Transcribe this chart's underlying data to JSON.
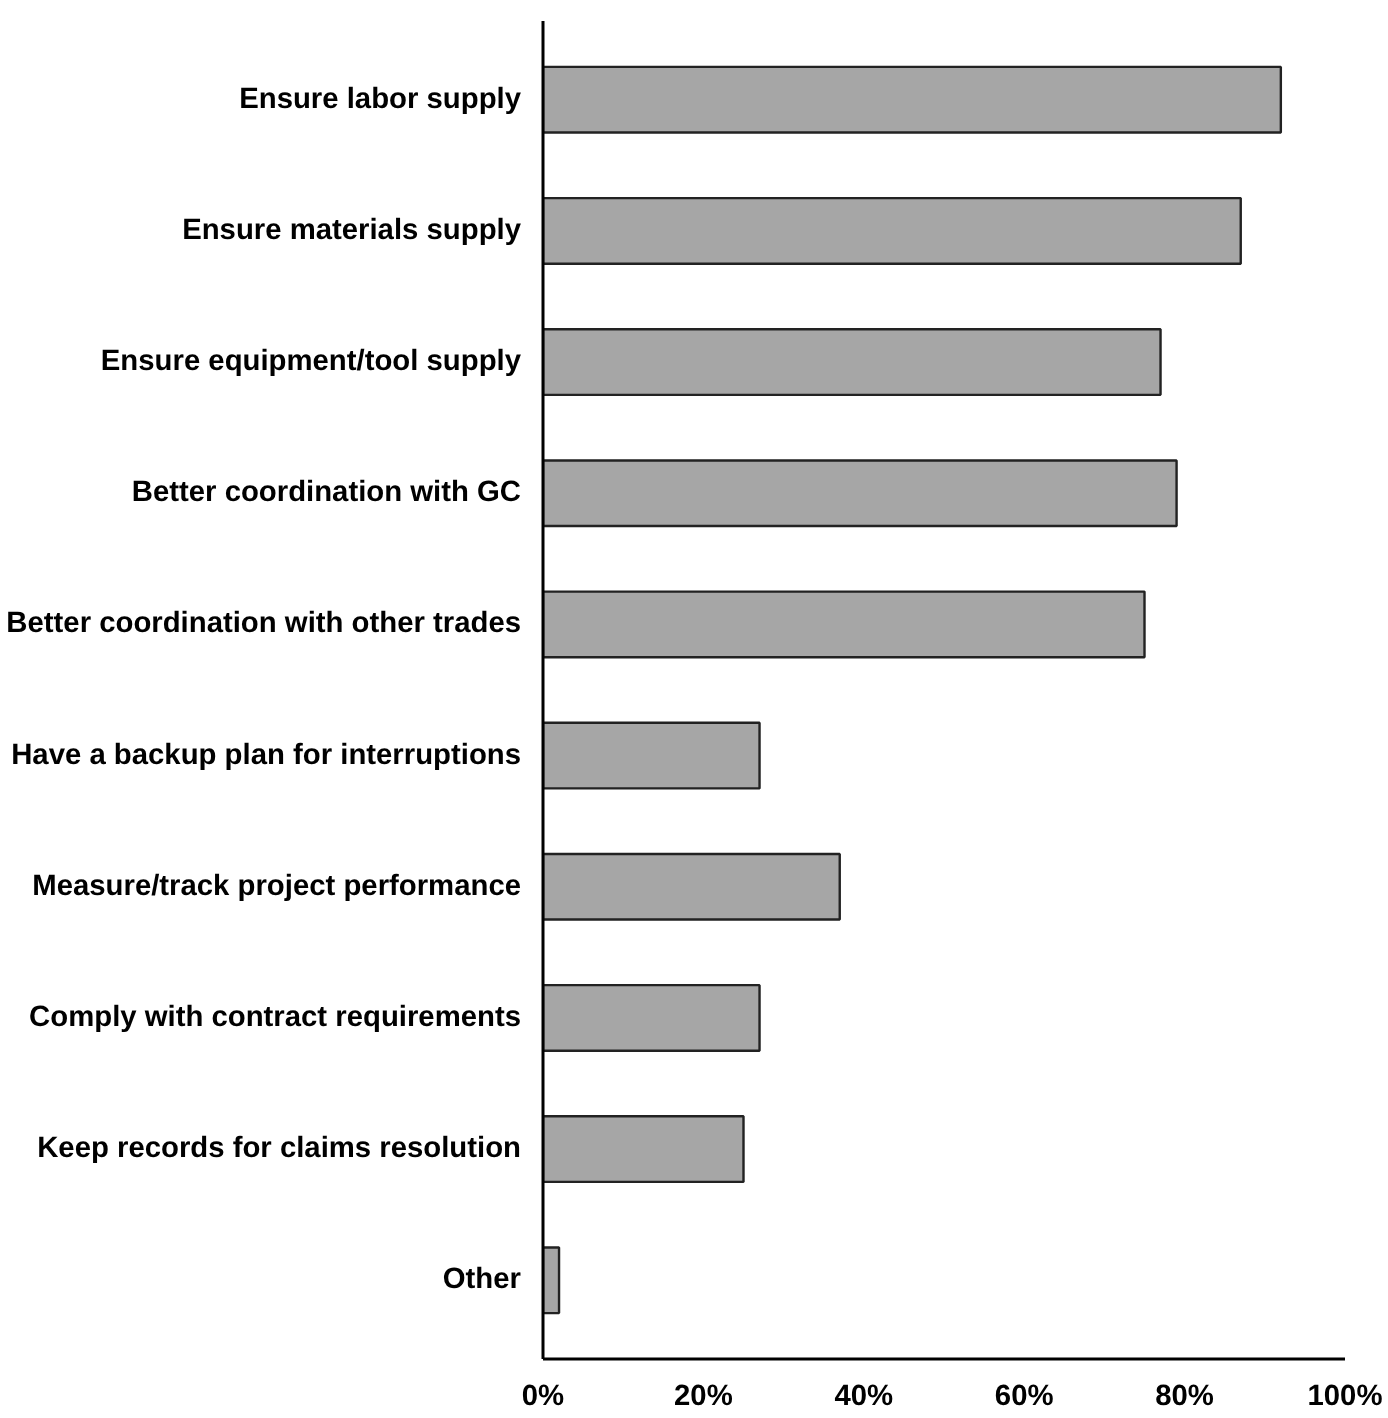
{
  "chart_data": {
    "type": "bar",
    "orientation": "horizontal",
    "categories": [
      "Ensure labor supply",
      "Ensure materials supply",
      "Ensure equipment/tool supply",
      "Better coordination with GC",
      "Better coordination with other trades",
      "Have a backup plan for interruptions",
      "Measure/track project performance",
      "Comply with contract requirements",
      "Keep records for claims resolution",
      "Other"
    ],
    "values": [
      92,
      87,
      77,
      79,
      75,
      27,
      37,
      27,
      25,
      2
    ],
    "color": "#a6a6a6",
    "xlim": [
      0,
      100
    ],
    "xticks": [
      {
        "value": 0,
        "label": "0%"
      },
      {
        "value": 20,
        "label": "20%"
      },
      {
        "value": 40,
        "label": "40%"
      },
      {
        "value": 60,
        "label": "60%"
      },
      {
        "value": 80,
        "label": "80%"
      },
      {
        "value": 100,
        "label": "100%"
      }
    ],
    "grid": false
  }
}
